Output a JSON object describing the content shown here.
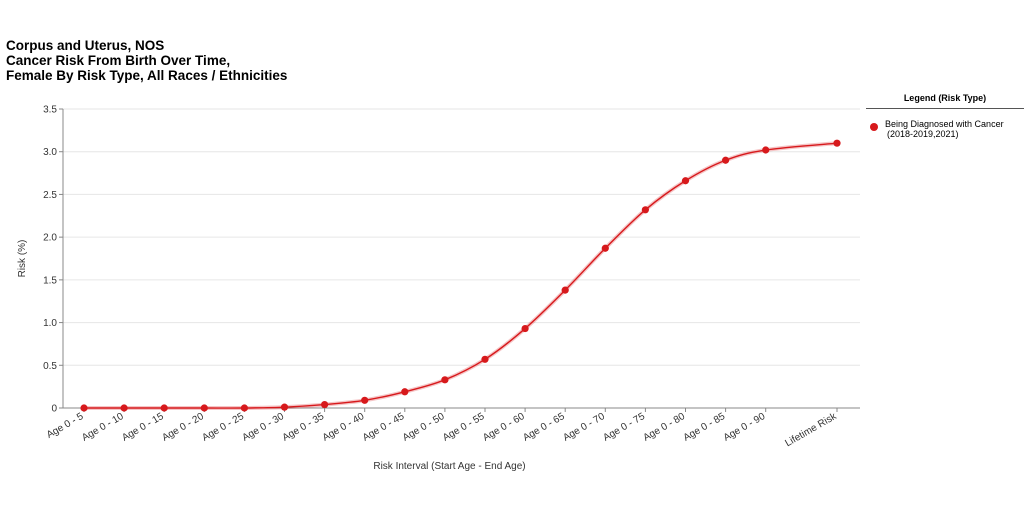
{
  "title_lines": [
    "Corpus and Uterus, NOS",
    "Cancer Risk From Birth Over Time,",
    "Female By Risk Type, All Races / Ethnicities"
  ],
  "legend": {
    "title": "Legend (Risk Type)",
    "items": [
      {
        "line1": "Being Diagnosed with Cancer",
        "line2": "(2018-2019,2021)",
        "color": "#d7191c"
      }
    ]
  },
  "chart_data": {
    "type": "line",
    "xlabel": "Risk Interval (Start Age - End Age)",
    "ylabel": "Risk (%)",
    "ylim": [
      0,
      3.5
    ],
    "yticks": [
      "0",
      "0.5",
      "1.0",
      "1.5",
      "2.0",
      "2.5",
      "3.0",
      "3.5"
    ],
    "grid": "horizontal",
    "legend_position": "right",
    "categories": [
      "Age 0 - 5",
      "Age 0 - 10",
      "Age 0 - 15",
      "Age 0 - 20",
      "Age 0 - 25",
      "Age 0 - 30",
      "Age 0 - 35",
      "Age 0 - 40",
      "Age 0 - 45",
      "Age 0 - 50",
      "Age 0 - 55",
      "Age 0 - 60",
      "Age 0 - 65",
      "Age 0 - 70",
      "Age 0 - 75",
      "Age 0 - 80",
      "Age 0 - 85",
      "Age 0 - 90",
      "Lifetime Risk"
    ],
    "series": [
      {
        "name": "Being Diagnosed with Cancer (2018-2019,2021)",
        "color": "#d7191c",
        "values": [
          0.0,
          0.0,
          0.0,
          0.0,
          0.0,
          0.01,
          0.04,
          0.09,
          0.19,
          0.33,
          0.57,
          0.93,
          1.38,
          1.87,
          2.32,
          2.66,
          2.9,
          3.02,
          3.1
        ]
      }
    ]
  }
}
